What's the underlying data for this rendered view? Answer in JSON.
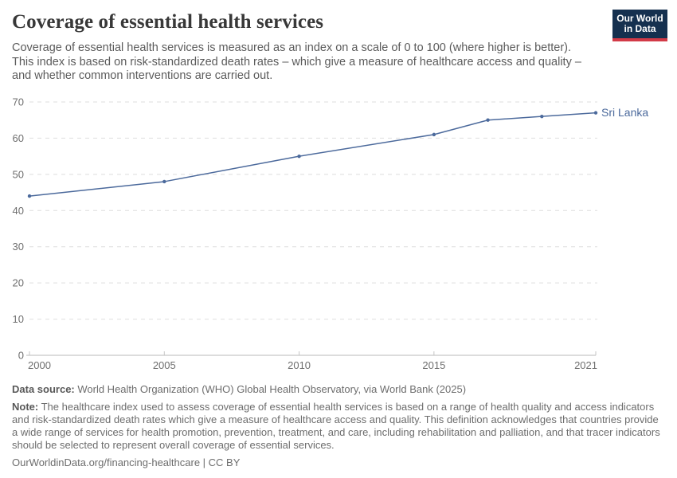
{
  "header": {
    "title": "Coverage of essential health services",
    "subtitle": "Coverage of essential health services is measured as an index on a scale of 0 to 100 (where higher is better). This index is based on risk-standardized death rates – which give a measure of healthcare access and quality – and whether common interventions are carried out.",
    "logo_line1": "Our World",
    "logo_line2": "in Data",
    "logo_bg_color": "#15304f",
    "logo_bar_color": "#d23a47"
  },
  "chart_data": {
    "type": "line",
    "title": "Coverage of essential health services",
    "xlabel": "",
    "ylabel": "",
    "xlim": [
      2000,
      2021
    ],
    "ylim": [
      0,
      70
    ],
    "x_ticks": [
      2000,
      2005,
      2010,
      2015,
      2021
    ],
    "y_ticks": [
      0,
      10,
      20,
      30,
      40,
      50,
      60,
      70
    ],
    "grid": "horizontal-dashed",
    "legend_position": "end-of-line-label",
    "series": [
      {
        "name": "Sri Lanka",
        "color": "#4C6A9C",
        "x": [
          2000,
          2005,
          2010,
          2015,
          2017,
          2019,
          2021
        ],
        "values": [
          44,
          48,
          55,
          61,
          65,
          66,
          67
        ]
      }
    ]
  },
  "footer": {
    "datasource_label": "Data source:",
    "datasource_text": " World Health Organization (WHO) Global Health Observatory, via World Bank (2025)",
    "note_label": "Note:",
    "note_text": " The healthcare index used to assess coverage of essential health services is based on a range of health quality and access indicators and risk-standardized death rates which give a measure of healthcare access and quality. This definition acknowledges that countries provide a wide range of services for health promotion, prevention, treatment, and care, including rehabilitation and palliation, and that tracer indicators should be selected to represent overall coverage of essential services.",
    "citation": "OurWorldinData.org/financing-healthcare | CC BY"
  }
}
